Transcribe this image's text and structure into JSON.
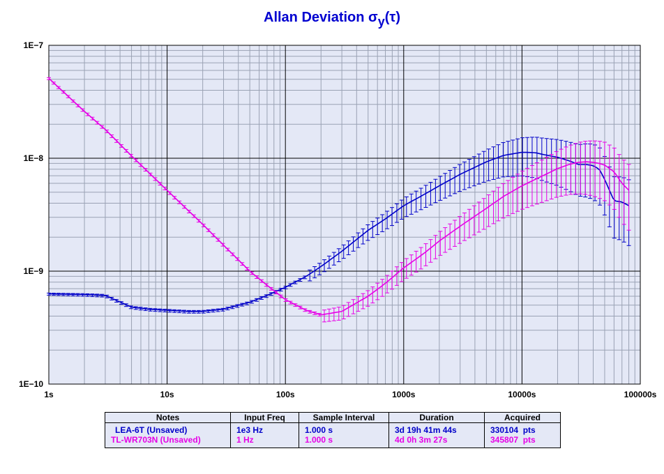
{
  "chart_data": {
    "type": "line",
    "title": "Allan Deviation",
    "title_symbol": "σ",
    "title_subscript": "y",
    "title_suffix": "(τ)",
    "x_scale": "log",
    "y_scale": "log",
    "xlim": [
      1,
      100000
    ],
    "ylim": [
      1e-10,
      1e-07
    ],
    "x_tick_labels": [
      "1s",
      "10s",
      "100s",
      "1000s",
      "10000s",
      "100000s"
    ],
    "y_tick_labels": [
      "1E−10",
      "1E−9",
      "1E−8",
      "1E−7"
    ],
    "grid": true,
    "plot_background": "#e4e8f6",
    "series": [
      {
        "name": "LEA-6T (Unsaved)",
        "color": "#0000c8",
        "x": [
          1,
          2,
          3,
          5,
          7,
          10,
          15,
          20,
          30,
          50,
          70,
          100,
          150,
          200,
          300,
          500,
          700,
          1000,
          1500,
          2000,
          3000,
          5000,
          7000,
          10000,
          13000,
          15000,
          20000,
          25000,
          30000,
          35000,
          40000,
          45000,
          50000,
          60000,
          70000,
          80000
        ],
        "y": [
          6.3e-10,
          6.2e-10,
          6.1e-10,
          4.8e-10,
          4.6e-10,
          4.5e-10,
          4.4e-10,
          4.4e-10,
          4.6e-10,
          5.3e-10,
          6.1e-10,
          7.2e-10,
          9e-10,
          1.1e-09,
          1.5e-09,
          2.3e-09,
          2.9e-09,
          3.8e-09,
          4.8e-09,
          5.7e-09,
          7.2e-09,
          9.3e-09,
          1.06e-08,
          1.13e-08,
          1.12e-08,
          1.08e-08,
          1.02e-08,
          9.5e-09,
          8.8e-09,
          8.8e-09,
          8.6e-09,
          8e-09,
          6.5e-09,
          4.2e-09,
          4.1e-09,
          3.8e-09
        ],
        "error_bars_from_x": 150
      },
      {
        "name": "TL-WR703N (Unsaved)",
        "color": "#e600e6",
        "x": [
          1,
          2,
          3,
          5,
          10,
          20,
          30,
          50,
          70,
          100,
          150,
          200,
          300,
          500,
          700,
          1000,
          1500,
          2000,
          3000,
          5000,
          7000,
          10000,
          15000,
          20000,
          25000,
          30000,
          35000,
          40000,
          45000,
          50000,
          60000,
          70000,
          80000
        ],
        "y": [
          5.1e-08,
          2.6e-08,
          1.8e-08,
          1.05e-08,
          5.2e-09,
          2.6e-09,
          1.7e-09,
          1e-09,
          7.5e-10,
          5.6e-10,
          4.5e-10,
          4.1e-10,
          4.4e-10,
          6e-10,
          7.8e-10,
          1.07e-09,
          1.45e-09,
          1.85e-09,
          2.5e-09,
          3.6e-09,
          4.6e-09,
          5.7e-09,
          7e-09,
          8.1e-09,
          8.8e-09,
          9.2e-09,
          9.3e-09,
          9.2e-09,
          9e-09,
          8.7e-09,
          7.6e-09,
          6e-09,
          5.2e-09
        ],
        "error_bars_from_x": 200
      }
    ]
  },
  "legend_table": {
    "headers": [
      "Notes",
      "Input Freq",
      "Sample Interval",
      "Duration",
      "Acquired"
    ],
    "rows": [
      {
        "color": "#0000c8",
        "notes": "LEA-6T (Unsaved)",
        "freq": "1e3 Hz",
        "interval": "1.000 s",
        "duration": "3d 19h 41m 44s",
        "acquired": "330104  pts"
      },
      {
        "color": "#e600e6",
        "notes": "TL-WR703N (Unsaved)",
        "freq": "1 Hz",
        "interval": "1.000 s",
        "duration": "4d 0h 3m 27s",
        "acquired": "345807  pts"
      }
    ]
  }
}
